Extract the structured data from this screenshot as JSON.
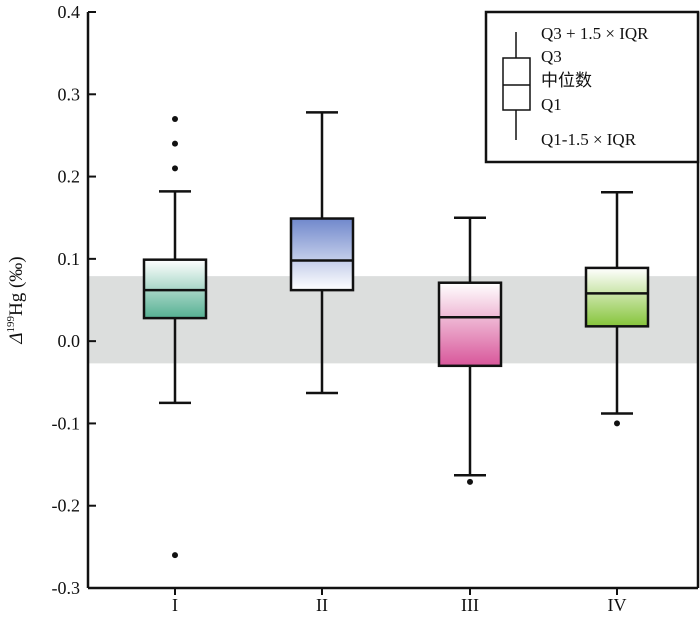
{
  "chart_data": {
    "type": "boxplot",
    "title": "",
    "xlabel": "",
    "ylabel": {
      "symbol": "Δ",
      "superscript": "199",
      "element": "Hg",
      "unit": " (‰)"
    },
    "ylim": [
      -0.3,
      0.4
    ],
    "yticks": [
      "-0.3",
      "-0.2",
      "-0.1",
      "0.0",
      "0.1",
      "0.2",
      "0.3",
      "0.4"
    ],
    "ytick_values": [
      -0.3,
      -0.2,
      -0.1,
      0.0,
      0.1,
      0.2,
      0.3,
      0.4
    ],
    "grid": false,
    "shaded_band": {
      "from": -0.027,
      "to": 0.079,
      "color": "#dcdedd"
    },
    "categories": [
      "I",
      "II",
      "III",
      "IV"
    ],
    "boxes": [
      {
        "category": "I",
        "whisker_high": 0.182,
        "q3": 0.099,
        "median": 0.062,
        "q1": 0.028,
        "whisker_low": -0.075,
        "outliers": [
          0.27,
          0.24,
          0.21,
          -0.26
        ],
        "color_dark": "#55b092",
        "gradient": "bottom"
      },
      {
        "category": "II",
        "whisker_high": 0.278,
        "q3": 0.149,
        "median": 0.098,
        "q1": 0.062,
        "whisker_low": -0.063,
        "outliers": [],
        "color_dark": "#7088cc",
        "gradient": "top"
      },
      {
        "category": "III",
        "whisker_high": 0.15,
        "q3": 0.071,
        "median": 0.029,
        "q1": -0.03,
        "whisker_low": -0.163,
        "outliers": [
          -0.171
        ],
        "color_dark": "#d8569a",
        "gradient": "bottom"
      },
      {
        "category": "IV",
        "whisker_high": 0.181,
        "q3": 0.089,
        "median": 0.058,
        "q1": 0.018,
        "whisker_low": -0.088,
        "outliers": [
          -0.1
        ],
        "color_dark": "#86c43a",
        "gradient": "bottom"
      }
    ],
    "legend": {
      "position": "top-right",
      "labels": [
        "Q3 + 1.5 × IQR",
        "Q3",
        "中位数",
        "Q1",
        "Q1-1.5 × IQR"
      ]
    }
  }
}
